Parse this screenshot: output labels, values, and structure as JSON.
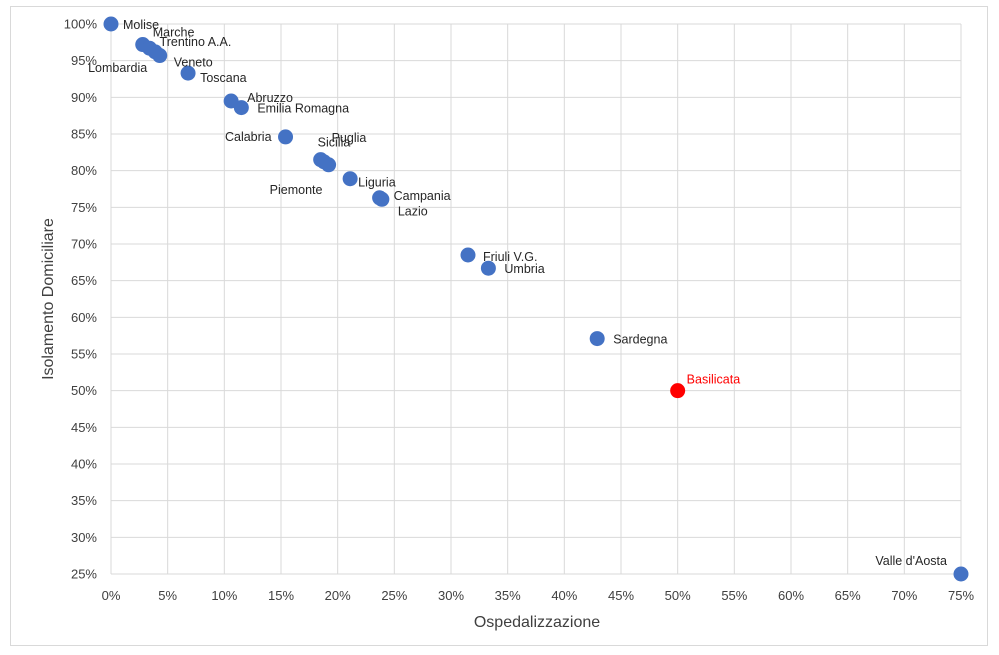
{
  "chart_data": {
    "type": "scatter",
    "title": "",
    "xlabel": "Ospedalizzazione",
    "ylabel": "Isolamento Domiciliare",
    "xlim": [
      0,
      75
    ],
    "ylim": [
      25,
      100
    ],
    "xticks": [
      0,
      5,
      10,
      15,
      20,
      25,
      30,
      35,
      40,
      45,
      50,
      55,
      60,
      65,
      70,
      75
    ],
    "yticks": [
      25,
      30,
      35,
      40,
      45,
      50,
      55,
      60,
      65,
      70,
      75,
      80,
      85,
      90,
      95,
      100
    ],
    "tick_suffix": "%",
    "grid": true,
    "colors": {
      "default": "#4472c4",
      "highlight": "#ff0000",
      "grid": "#d9d9d9",
      "text": "#404040"
    },
    "points": [
      {
        "label": "Molise",
        "x": 0.0,
        "y": 100.0,
        "highlight": false
      },
      {
        "label": "Marche",
        "x": 2.8,
        "y": 97.2,
        "highlight": false
      },
      {
        "label": "Trentino A.A.",
        "x": 3.4,
        "y": 96.7,
        "highlight": false
      },
      {
        "label": "Lombardia",
        "x": 3.9,
        "y": 96.2,
        "highlight": false
      },
      {
        "label": "Veneto",
        "x": 4.3,
        "y": 95.7,
        "highlight": false
      },
      {
        "label": "Toscana",
        "x": 6.8,
        "y": 93.3,
        "highlight": false
      },
      {
        "label": "Abruzzo",
        "x": 10.6,
        "y": 89.5,
        "highlight": false
      },
      {
        "label": "Emilia Romagna",
        "x": 11.5,
        "y": 88.6,
        "highlight": false
      },
      {
        "label": "Calabria",
        "x": 15.4,
        "y": 84.6,
        "highlight": false
      },
      {
        "label": "Sicilia",
        "x": 18.5,
        "y": 81.5,
        "highlight": false
      },
      {
        "label": "Piemonte",
        "x": 18.8,
        "y": 81.2,
        "highlight": false
      },
      {
        "label": "Puglia",
        "x": 19.2,
        "y": 80.8,
        "highlight": false
      },
      {
        "label": "Liguria",
        "x": 21.1,
        "y": 78.9,
        "highlight": false
      },
      {
        "label": "Campania",
        "x": 23.7,
        "y": 76.3,
        "highlight": false
      },
      {
        "label": "Lazio",
        "x": 23.9,
        "y": 76.1,
        "highlight": false
      },
      {
        "label": "Friuli V.G.",
        "x": 31.5,
        "y": 68.5,
        "highlight": false
      },
      {
        "label": "Umbria",
        "x": 33.3,
        "y": 66.7,
        "highlight": false
      },
      {
        "label": "Sardegna",
        "x": 42.9,
        "y": 57.1,
        "highlight": false
      },
      {
        "label": "Basilicata",
        "x": 50.0,
        "y": 50.0,
        "highlight": true
      },
      {
        "label": "Valle d'Aosta",
        "x": 75.0,
        "y": 25.0,
        "highlight": false
      }
    ]
  }
}
